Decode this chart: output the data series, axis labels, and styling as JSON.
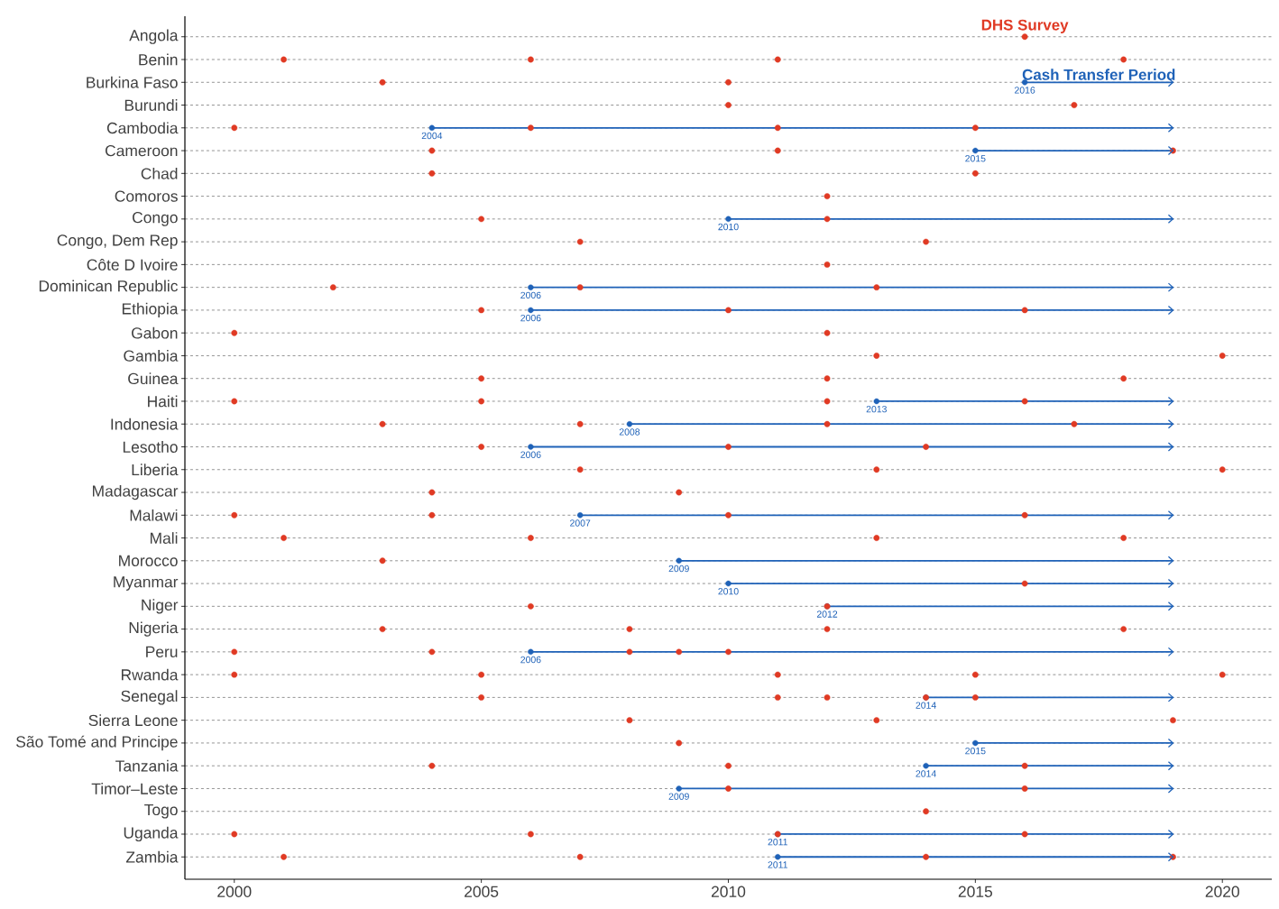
{
  "chart_data": {
    "type": "bar",
    "orientation": "horizontal",
    "legend": "top right",
    "annotations": [
      {
        "text": "2016",
        "x": 2016,
        "y": "Burkina Faso"
      },
      {
        "text": "2004",
        "x": 2004,
        "y": "Cambodia"
      },
      {
        "text": "2015",
        "x": 2015,
        "y": "Cameroon"
      },
      {
        "text": "2010",
        "x": 2010,
        "y": "Congo"
      },
      {
        "text": "2006",
        "x": 2006,
        "y": "Dominican Republic"
      },
      {
        "text": "2006",
        "x": 2006,
        "y": "Ethiopia"
      },
      {
        "text": "2013",
        "x": 2013,
        "y": "Haiti"
      },
      {
        "text": "2008",
        "x": 2008,
        "y": "Indonesia"
      },
      {
        "text": "2006",
        "x": 2006,
        "y": "Lesotho"
      },
      {
        "text": "2007",
        "x": 2007,
        "y": "Malawi"
      },
      {
        "text": "2009",
        "x": 2009,
        "y": "Morocco"
      },
      {
        "text": "2010",
        "x": 2010,
        "y": "Myanmar"
      },
      {
        "text": "2012",
        "x": 2012,
        "y": "Niger"
      },
      {
        "text": "2006",
        "x": 2006,
        "y": "Peru"
      },
      {
        "text": "2014",
        "x": 2014,
        "y": "Senegal"
      },
      {
        "text": "2015",
        "x": 2015,
        "y": "São Tomé and Principe"
      },
      {
        "text": "2014",
        "x": 2014,
        "y": "Tanzania"
      },
      {
        "text": "2009",
        "x": 2009,
        "y": "Timor–Leste"
      },
      {
        "text": "2011",
        "x": 2011,
        "y": "Uganda"
      },
      {
        "text": "2011",
        "x": 2011,
        "y": "Zambia"
      }
    ],
    "grid": "y",
    "xlim": [
      1999,
      2021
    ],
    "xticks": [
      2000,
      2005,
      2010,
      2015,
      2020
    ],
    "categories": [
      "Angola",
      "Benin",
      "Burkina Faso",
      "Burundi",
      "Cambodia",
      "Cameroon",
      "Chad",
      "Comoros",
      "Congo",
      "Congo, Dem Rep",
      "Côte D Ivoire",
      "Dominican Republic",
      "Ethiopia",
      "Gabon",
      "Gambia",
      "Guinea",
      "Haiti",
      "Indonesia",
      "Lesotho",
      "Liberia",
      "Madagascar",
      "Malawi",
      "Mali",
      "Morocco",
      "Myanmar",
      "Niger",
      "Nigeria",
      "Peru",
      "Rwanda",
      "Senegal",
      "Sierra Leone",
      "São Tomé and Principe",
      "Tanzania",
      "Timor–Leste",
      "Togo",
      "Uganda",
      "Zambia"
    ],
    "series": [
      {
        "name": "Cash Transfer Period",
        "color": "#1f62b8",
        "base": [
          null,
          null,
          2016,
          null,
          2004,
          2015,
          null,
          null,
          2010,
          null,
          null,
          2006,
          2006,
          null,
          null,
          null,
          2013,
          2008,
          2006,
          null,
          null,
          2007,
          null,
          2009,
          2010,
          2012,
          null,
          2006,
          null,
          2014,
          null,
          2015,
          2014,
          2009,
          null,
          2011,
          2011
        ],
        "values": [
          null,
          null,
          3,
          null,
          15,
          4,
          null,
          null,
          9,
          null,
          null,
          13,
          13,
          null,
          null,
          null,
          6,
          11,
          13,
          null,
          null,
          12,
          null,
          10,
          9,
          7,
          null,
          13,
          null,
          5,
          null,
          4,
          5,
          10,
          null,
          8,
          8
        ]
      },
      {
        "name": "DHS Survey",
        "type": "scatter",
        "marker": "circle",
        "color": "#e03a24",
        "x": [
          "Angola",
          "Benin",
          "Benin",
          "Benin",
          "Benin",
          "Burkina Faso",
          "Burkina Faso",
          "Burundi",
          "Burundi",
          "Cambodia",
          "Cambodia",
          "Cambodia",
          "Cambodia",
          "Cameroon",
          "Cameroon",
          "Cameroon",
          "Chad",
          "Chad",
          "Comoros",
          "Congo",
          "Congo",
          "Congo, Dem Rep",
          "Congo, Dem Rep",
          "Côte D Ivoire",
          "Dominican Republic",
          "Dominican Republic",
          "Dominican Republic",
          "Ethiopia",
          "Ethiopia",
          "Ethiopia",
          "Gabon",
          "Gabon",
          "Gambia",
          "Gambia",
          "Guinea",
          "Guinea",
          "Guinea",
          "Haiti",
          "Haiti",
          "Haiti",
          "Haiti",
          "Indonesia",
          "Indonesia",
          "Indonesia",
          "Indonesia",
          "Lesotho",
          "Lesotho",
          "Lesotho",
          "Liberia",
          "Liberia",
          "Liberia",
          "Madagascar",
          "Madagascar",
          "Malawi",
          "Malawi",
          "Malawi",
          "Malawi",
          "Mali",
          "Mali",
          "Mali",
          "Mali",
          "Morocco",
          "Myanmar",
          "Niger",
          "Niger",
          "Nigeria",
          "Nigeria",
          "Nigeria",
          "Nigeria",
          "Peru",
          "Peru",
          "Peru",
          "Peru",
          "Peru",
          "Rwanda",
          "Rwanda",
          "Rwanda",
          "Rwanda",
          "Rwanda",
          "Senegal",
          "Senegal",
          "Senegal",
          "Senegal",
          "Senegal",
          "Sierra Leone",
          "Sierra Leone",
          "Sierra Leone",
          "São Tomé and Principe",
          "Tanzania",
          "Tanzania",
          "Tanzania",
          "Timor–Leste",
          "Timor–Leste",
          "Togo",
          "Uganda",
          "Uganda",
          "Uganda",
          "Uganda",
          "Zambia",
          "Zambia",
          "Zambia",
          "Zambia"
        ],
        "values": [
          2016,
          2001,
          2006,
          2011,
          2018,
          2003,
          2010,
          2010,
          2017,
          2000,
          2006,
          2011,
          2015,
          2004,
          2011,
          2019,
          2004,
          2015,
          2012,
          2005,
          2012,
          2007,
          2014,
          2012,
          2002,
          2007,
          2013,
          2005,
          2010,
          2016,
          2000,
          2012,
          2013,
          2020,
          2005,
          2012,
          2018,
          2000,
          2005,
          2012,
          2016,
          2003,
          2007,
          2012,
          2017,
          2005,
          2010,
          2014,
          2007,
          2013,
          2020,
          2004,
          2009,
          2000,
          2004,
          2010,
          2016,
          2001,
          2006,
          2013,
          2018,
          2003,
          2016,
          2006,
          2012,
          2003,
          2008,
          2012,
          2018,
          2000,
          2004,
          2008,
          2009,
          2010,
          2000,
          2005,
          2011,
          2015,
          2020,
          2005,
          2011,
          2012,
          2014,
          2015,
          2008,
          2013,
          2019,
          2009,
          2004,
          2010,
          2016,
          2010,
          2016,
          2014,
          2000,
          2006,
          2011,
          2016,
          2001,
          2007,
          2014,
          2019
        ]
      }
    ]
  }
}
